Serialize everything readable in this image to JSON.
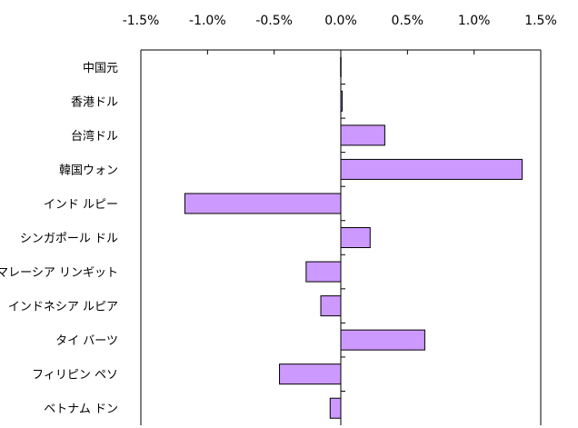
{
  "chart_data": {
    "type": "bar",
    "orientation": "horizontal",
    "categories": [
      "中国元",
      "香港ドル",
      "台湾ドル",
      "韓国ウォン",
      "インドルピー",
      "シンガポールドル",
      "マレーシアリンギット",
      "インドネシアルピア",
      "タイバーツ",
      "フィリピンペソ",
      "ベトナムドン"
    ],
    "category_labels": [
      "中国元",
      "香港ドル",
      "台湾ドル",
      "韓国ウォン",
      "インド ルピー",
      "シンガポール ドル",
      "マレーシア リンギット",
      "インドネシア ルピア",
      "タイ バーツ",
      "フィリピン ペソ",
      "ベトナム ドン"
    ],
    "values": [
      0.0,
      0.01,
      0.33,
      1.36,
      -1.17,
      0.22,
      -0.26,
      -0.15,
      0.63,
      -0.46,
      -0.08
    ],
    "unit": "%",
    "xlim": [
      -1.5,
      1.5
    ],
    "xticks": [
      -1.5,
      -1.0,
      -0.5,
      0.0,
      0.5,
      1.0,
      1.5
    ],
    "xtick_labels": [
      "-1.5%",
      "-1.0%",
      "-0.5%",
      "0.0%",
      "0.5%",
      "1.0%",
      "1.5%"
    ],
    "x_axis_position": "top",
    "grid": false,
    "legend": false,
    "colors": {
      "bar_fill": "#cc99ff",
      "bar_stroke": "#000000",
      "axis": "#000000"
    }
  }
}
